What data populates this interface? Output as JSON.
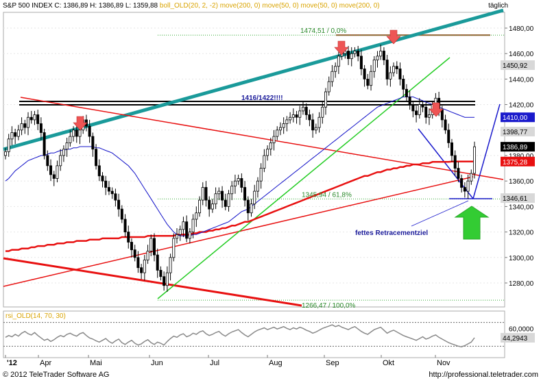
{
  "header": {
    "instrument": "S&P 500 INDEX",
    "ohlc": "C: 1386,89 H: 1386,89 L: 1359,88",
    "indicators": "boll_OLD(20, 2, -2) move(200, 0) move(50, 0) move(50, 0) move(200, 0)",
    "period": "täglich"
  },
  "footer": {
    "copyright": "© 2012 TeleTrader Software AG",
    "url": "http://professional.teletrader.com"
  },
  "colors": {
    "candle": "#000000",
    "ma200": "#e81010",
    "ma50": "#1010c8",
    "upper_channel": "#1a9a9a",
    "green_trend": "#22cc22",
    "red_trend": "#e81010",
    "arrow_down": "#ee5555",
    "arrow_up": "#33cc33",
    "rsi_line": "#888888"
  },
  "chart_data": [
    {
      "type": "candlestick",
      "ylim": [
        1262,
        1500
      ],
      "ytick_values": [
        1280,
        1300,
        1320,
        1340,
        1360,
        1380,
        1400,
        1420,
        1440,
        1460,
        1480
      ],
      "ytick_labels": [
        "1280,00",
        "1300,00",
        "1320,00",
        "1340,00",
        "1360,00",
        "1380,00",
        "1400,00",
        "1420,00",
        "1440,00",
        "1460,00",
        "1480,00"
      ],
      "x_month_labels": [
        "'12",
        "Apr",
        "Mai",
        "Jun",
        "Jul",
        "Aug",
        "Sep",
        "Okt",
        "Nov"
      ],
      "price_labels": [
        {
          "value": 1450.92,
          "text": "1450,92",
          "style": "grey"
        },
        {
          "value": 1410.0,
          "text": "1410,00",
          "style": "blue"
        },
        {
          "value": 1398.77,
          "text": "1398,77",
          "style": "grey"
        },
        {
          "value": 1386.89,
          "text": "1386,89",
          "style": "black"
        },
        {
          "value": 1375.28,
          "text": "1375,28",
          "style": "red"
        },
        {
          "value": 1346.61,
          "text": "1346,61",
          "style": "grey"
        }
      ],
      "fib_levels": [
        {
          "value": 1474.51,
          "text": "1474,51 / 0,0%"
        },
        {
          "value": 1345.94,
          "text": "1345,94 / 61,8%"
        },
        {
          "value": 1266.47,
          "text": "1266,47 / 100,0%"
        }
      ],
      "annotations": {
        "resistance_label": "1416/1422!!!!",
        "retracement_label": "fettes Retracementziel"
      },
      "closes": [
        1383,
        1393,
        1398,
        1395,
        1400,
        1405,
        1402,
        1410,
        1408,
        1412,
        1405,
        1398,
        1380,
        1372,
        1365,
        1362,
        1372,
        1380,
        1385,
        1390,
        1395,
        1400,
        1395,
        1400,
        1408,
        1403,
        1395,
        1385,
        1372,
        1364,
        1360,
        1355,
        1352,
        1350,
        1345,
        1338,
        1330,
        1320,
        1312,
        1306,
        1300,
        1292,
        1288,
        1298,
        1305,
        1315,
        1302,
        1290,
        1285,
        1278,
        1288,
        1300,
        1315,
        1318,
        1322,
        1328,
        1315,
        1320,
        1330,
        1335,
        1345,
        1355,
        1345,
        1338,
        1342,
        1350,
        1352,
        1345,
        1340,
        1350,
        1356,
        1360,
        1362,
        1355,
        1345,
        1335,
        1342,
        1352,
        1360,
        1370,
        1380,
        1385,
        1390,
        1395,
        1400,
        1402,
        1405,
        1408,
        1410,
        1412,
        1410,
        1415,
        1418,
        1412,
        1408,
        1400,
        1402,
        1410,
        1418,
        1430,
        1438,
        1446,
        1450,
        1458,
        1460,
        1462,
        1456,
        1460,
        1462,
        1458,
        1448,
        1440,
        1435,
        1446,
        1455,
        1458,
        1462,
        1455,
        1440,
        1445,
        1450,
        1448,
        1440,
        1432,
        1426,
        1420,
        1415,
        1412,
        1420,
        1418,
        1410,
        1412,
        1420,
        1425,
        1416,
        1408,
        1400,
        1390,
        1380,
        1370,
        1362,
        1355,
        1352,
        1360,
        1366,
        1386.89
      ],
      "ma200": [
        1305,
        1305,
        1306,
        1306,
        1306,
        1307,
        1307,
        1307,
        1308,
        1308,
        1309,
        1309,
        1309,
        1310,
        1310,
        1310,
        1311,
        1311,
        1311,
        1312,
        1312,
        1312,
        1313,
        1313,
        1313,
        1313,
        1314,
        1314,
        1314,
        1314,
        1315,
        1315,
        1315,
        1315,
        1315,
        1315,
        1316,
        1316,
        1316,
        1316,
        1316,
        1316,
        1316,
        1316,
        1317,
        1317,
        1317,
        1317,
        1317,
        1317,
        1317,
        1317,
        1317,
        1318,
        1318,
        1318,
        1318,
        1318,
        1319,
        1319,
        1320,
        1320,
        1320,
        1321,
        1321,
        1322,
        1322,
        1323,
        1323,
        1324,
        1325,
        1325,
        1326,
        1327,
        1328,
        1328,
        1329,
        1330,
        1331,
        1332,
        1333,
        1334,
        1335,
        1336,
        1337,
        1338,
        1339,
        1340,
        1341,
        1342,
        1343,
        1344,
        1345,
        1346,
        1347,
        1348,
        1349,
        1350,
        1351,
        1352,
        1353,
        1354,
        1355,
        1356,
        1357,
        1358,
        1359,
        1360,
        1361,
        1362,
        1363,
        1364,
        1364,
        1365,
        1366,
        1367,
        1367,
        1368,
        1369,
        1369,
        1370,
        1370,
        1371,
        1371,
        1372,
        1372,
        1373,
        1373,
        1373,
        1374,
        1374,
        1374,
        1375,
        1375,
        1375,
        1375,
        1375,
        1375,
        1375.28,
        1375.28,
        1375.28,
        1375.28,
        1375.28,
        1375.28,
        1375.28,
        1375.28
      ],
      "ma50": [
        1360,
        1362,
        1365,
        1368,
        1370,
        1372,
        1374,
        1376,
        1377,
        1378,
        1379,
        1380,
        1380,
        1381,
        1382,
        1382,
        1383,
        1384,
        1384,
        1385,
        1385,
        1386,
        1386,
        1387,
        1387,
        1387,
        1387,
        1387,
        1386,
        1386,
        1385,
        1384,
        1383,
        1382,
        1380,
        1378,
        1376,
        1374,
        1372,
        1369,
        1366,
        1362,
        1358,
        1354,
        1350,
        1346,
        1342,
        1338,
        1334,
        1330,
        1326,
        1323,
        1320,
        1318,
        1317,
        1317,
        1317,
        1317,
        1318,
        1318,
        1319,
        1320,
        1321,
        1322,
        1323,
        1324,
        1325,
        1326,
        1327,
        1328,
        1330,
        1332,
        1334,
        1336,
        1337,
        1338,
        1340,
        1342,
        1344,
        1346,
        1348,
        1350,
        1352,
        1354,
        1356,
        1358,
        1360,
        1362,
        1364,
        1366,
        1368,
        1370,
        1372,
        1374,
        1376,
        1378,
        1380,
        1382,
        1384,
        1386,
        1388,
        1390,
        1392,
        1394,
        1396,
        1398,
        1400,
        1402,
        1404,
        1406,
        1408,
        1410,
        1412,
        1414,
        1416,
        1418,
        1419,
        1420,
        1421,
        1422,
        1423,
        1424,
        1425,
        1426,
        1426,
        1426,
        1426,
        1425,
        1424,
        1423,
        1422,
        1421,
        1420,
        1419,
        1418,
        1417,
        1416,
        1415,
        1414,
        1413,
        1412,
        1411,
        1410,
        1410,
        1410,
        1410
      ]
    },
    {
      "type": "line",
      "title": "rsi_OLD(14, 70, 30)",
      "ylim": [
        20,
        80
      ],
      "ytick_values": [
        60
      ],
      "ytick_labels": [
        "60,0000"
      ],
      "levels": [
        70,
        30
      ],
      "last_value": 44.2943,
      "last_label": "44,2943",
      "values": [
        45,
        48,
        46,
        50,
        47,
        52,
        55,
        51,
        49,
        53,
        48,
        44,
        40,
        42,
        38,
        41,
        45,
        48,
        46,
        50,
        52,
        49,
        47,
        51,
        53,
        48,
        44,
        42,
        39,
        37,
        40,
        43,
        38,
        35,
        39,
        42,
        36,
        33,
        37,
        40,
        35,
        32,
        34,
        38,
        41,
        36,
        33,
        37,
        35,
        32,
        38,
        43,
        47,
        45,
        49,
        51,
        46,
        48,
        52,
        50,
        54,
        56,
        51,
        48,
        50,
        53,
        55,
        50,
        47,
        51,
        54,
        56,
        58,
        53,
        49,
        46,
        50,
        54,
        57,
        59,
        61,
        58,
        60,
        62,
        59,
        61,
        63,
        60,
        58,
        61,
        59,
        62,
        60,
        57,
        55,
        52,
        54,
        57,
        60,
        62,
        64,
        66,
        63,
        65,
        62,
        60,
        58,
        61,
        63,
        59,
        55,
        52,
        50,
        54,
        58,
        60,
        62,
        57,
        52,
        55,
        57,
        54,
        51,
        48,
        46,
        44,
        42,
        40,
        43,
        46,
        42,
        44,
        47,
        49,
        45,
        42,
        39,
        36,
        34,
        32,
        30,
        29,
        31,
        34,
        37,
        44.2943
      ]
    }
  ]
}
